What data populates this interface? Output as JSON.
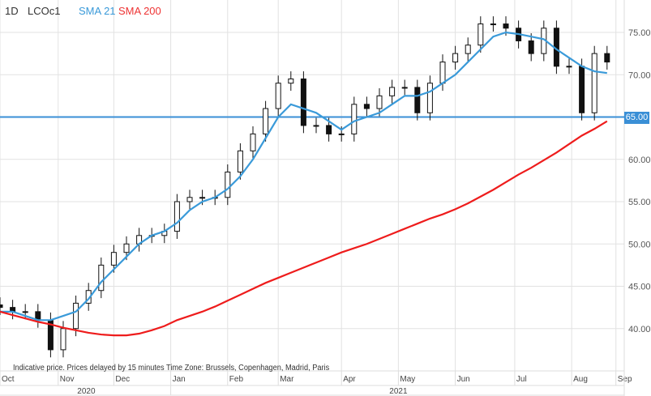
{
  "header": {
    "interval": "1D",
    "symbol": "LCOc1",
    "sma_short_label": "SMA 21",
    "sma_long_label": "SMA 200"
  },
  "footer_note": "Indicative price. Prices delayed by 15 minutes    Time Zone: Brussels, Copenhagen, Madrid, Paris",
  "hline": {
    "value": 65,
    "label": "65.00",
    "color": "#3a8fd6"
  },
  "colors": {
    "sma_short": "#3a9ad9",
    "sma_long": "#ee1c1c",
    "candle": "#111111"
  },
  "chart_data": {
    "type": "candlestick",
    "title": "LCOc1",
    "ylim": [
      34.5,
      78.5
    ],
    "y_ticks": [
      "75.00",
      "70.00",
      "65.00",
      "60.00",
      "55.00",
      "50.00",
      "45.00",
      "40.00"
    ],
    "y_tick_values": [
      75,
      70,
      65,
      60,
      55,
      50,
      45,
      40
    ],
    "months": [
      "Oct",
      "Nov",
      "Dec",
      "Jan",
      "Feb",
      "Mar",
      "Apr",
      "May",
      "Jun",
      "Jul",
      "Aug",
      "Sep"
    ],
    "month_index": [
      0,
      4.6,
      9,
      13.5,
      18,
      22,
      27,
      31.5,
      36,
      40.7,
      45.2,
      48.7
    ],
    "years": [
      "2020",
      "2021"
    ],
    "x_unit": "week",
    "closes": [
      42.5,
      42,
      42,
      41,
      37.5,
      40,
      43,
      44.5,
      47.5,
      49,
      50,
      51,
      51,
      51.5,
      55,
      55.5,
      55.5,
      55.5,
      58.5,
      61,
      63,
      66,
      69,
      69.5,
      64,
      64,
      63,
      63,
      66.5,
      66,
      67.5,
      68.5,
      68.5,
      65.5,
      69,
      71.5,
      72.5,
      73.5,
      76,
      76,
      75.5,
      74,
      72.5,
      75.5,
      71,
      71,
      65.5,
      72.5,
      71.5
    ],
    "sma21": [
      42,
      42,
      41.5,
      41,
      41,
      41.5,
      42,
      43.5,
      45.5,
      47,
      48.5,
      50,
      51,
      51.5,
      52.5,
      54,
      55,
      55.5,
      56.5,
      58,
      60,
      62.5,
      65,
      66.5,
      66,
      65.5,
      64.5,
      63.5,
      64.5,
      65,
      65.5,
      66.5,
      67.5,
      67.5,
      68,
      69,
      70,
      71.5,
      73,
      74.5,
      75,
      74.8,
      74.5,
      74.2,
      73,
      72,
      71,
      70.4,
      70.2
    ],
    "sma200": [
      42,
      41.6,
      41.2,
      40.8,
      40.5,
      40.1,
      39.8,
      39.5,
      39.3,
      39.2,
      39.2,
      39.4,
      39.8,
      40.3,
      41,
      41.5,
      42,
      42.6,
      43.3,
      44,
      44.7,
      45.4,
      46,
      46.6,
      47.2,
      47.8,
      48.4,
      49,
      49.5,
      50,
      50.6,
      51.2,
      51.8,
      52.4,
      53,
      53.5,
      54.1,
      54.8,
      55.6,
      56.4,
      57.3,
      58.2,
      59,
      59.9,
      60.8,
      61.8,
      62.8,
      63.6,
      64.5
    ]
  }
}
